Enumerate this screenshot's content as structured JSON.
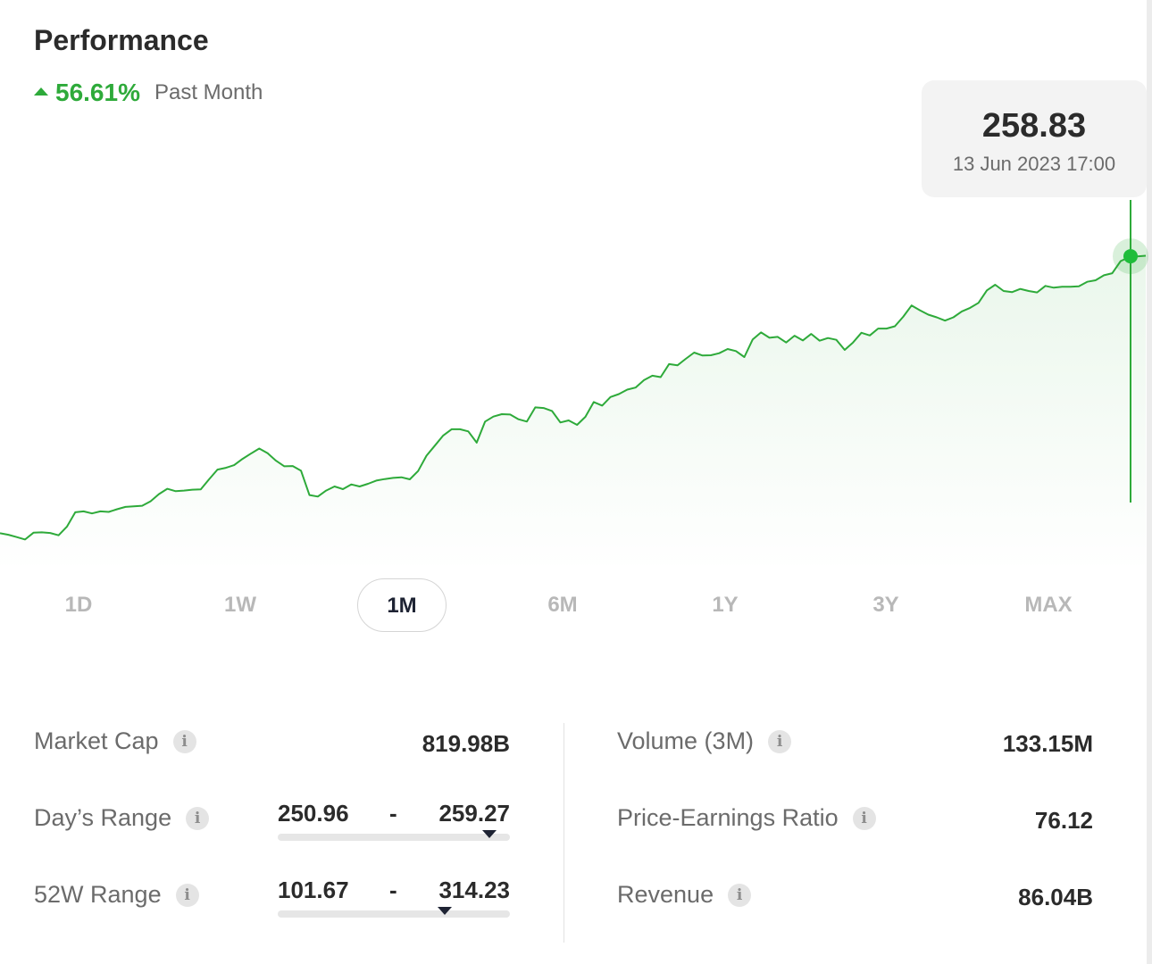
{
  "performance": {
    "title": "Performance",
    "change_pct": "56.61%",
    "change_period": "Past Month",
    "accent_color": "#2eaa3a"
  },
  "tooltip": {
    "value": "258.83",
    "date": "13 Jun 2023 17:00"
  },
  "timeframes": [
    {
      "label": "1D",
      "active": false
    },
    {
      "label": "1W",
      "active": false
    },
    {
      "label": "1M",
      "active": true
    },
    {
      "label": "6M",
      "active": false
    },
    {
      "label": "1Y",
      "active": false
    },
    {
      "label": "3Y",
      "active": false
    },
    {
      "label": "MAX",
      "active": false
    }
  ],
  "stats": {
    "market_cap": {
      "label": "Market Cap",
      "value": "819.98B"
    },
    "days_range": {
      "label": "Day’s Range",
      "low": "250.96",
      "high": "259.27",
      "current_fraction": 0.91
    },
    "week52_range": {
      "label": "52W Range",
      "low": "101.67",
      "high": "314.23",
      "current_fraction": 0.72
    },
    "volume": {
      "label": "Volume (3M)",
      "value": "133.15M"
    },
    "pe_ratio": {
      "label": "Price-Earnings Ratio",
      "value": "76.12"
    },
    "revenue": {
      "label": "Revenue",
      "value": "86.04B"
    }
  },
  "chart_data": {
    "type": "area",
    "line_color": "#2eaa3a",
    "ylim": [
      160,
      270
    ],
    "values": [
      165.3,
      164.8,
      164.0,
      163.2,
      165.5,
      165.6,
      165.4,
      164.6,
      167.5,
      172.4,
      172.7,
      172.0,
      172.7,
      172.5,
      173.4,
      174.2,
      174.4,
      174.6,
      176.1,
      178.5,
      180.3,
      179.5,
      179.7,
      180.0,
      180.1,
      183.5,
      186.8,
      187.4,
      188.3,
      190.4,
      192.2,
      193.9,
      192.3,
      189.8,
      187.9,
      188.0,
      186.4,
      178.2,
      177.7,
      179.7,
      181.1,
      180.2,
      181.8,
      181.1,
      182.0,
      183.1,
      183.6,
      184.0,
      184.2,
      183.5,
      186.3,
      191.5,
      194.9,
      198.3,
      200.4,
      200.4,
      199.7,
      195.9,
      203.0,
      204.7,
      205.5,
      205.4,
      203.8,
      203.0,
      207.8,
      207.6,
      206.6,
      202.7,
      203.4,
      201.9,
      204.6,
      209.6,
      208.4,
      211.3,
      212.3,
      213.8,
      214.5,
      217.0,
      218.5,
      218.0,
      222.4,
      222.0,
      224.2,
      226.3,
      225.3,
      225.4,
      226.1,
      227.5,
      226.8,
      224.8,
      230.7,
      233.1,
      231.3,
      231.6,
      229.7,
      232.0,
      230.4,
      232.6,
      230.3,
      231.2,
      230.6,
      227.2,
      229.7,
      233.0,
      232.1,
      234.4,
      234.4,
      235.2,
      238.4,
      242.2,
      240.6,
      239.1,
      238.2,
      237.1,
      238.2,
      240.2,
      241.4,
      243.1,
      247.3,
      249.2,
      247.1,
      246.7,
      247.8,
      247.1,
      246.6,
      248.8,
      248.2,
      248.5,
      248.5,
      248.7,
      250.2,
      250.7,
      252.4,
      253.1,
      257.2,
      258.5,
      258.8,
      259.0
    ]
  }
}
